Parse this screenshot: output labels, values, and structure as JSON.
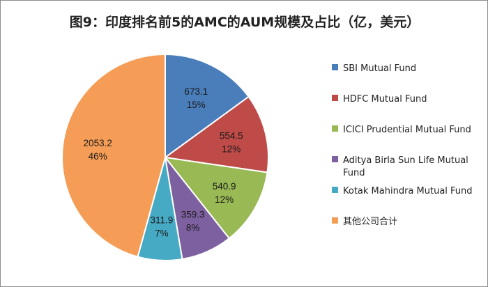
{
  "chart_data": {
    "type": "pie",
    "title": "图9：印度排名前5的AMC的AUM规模及占比（亿，美元）",
    "categories": [
      "SBI Mutual Fund",
      "HDFC Mutual Fund",
      "ICICI Prudential Mutual Fund",
      "Aditya Birla Sun Life Mutual Fund",
      "Kotak Mahindra Mutual Fund",
      "其他公司合计"
    ],
    "legend_lines": [
      [
        "SBI Mutual Fund"
      ],
      [
        "HDFC Mutual Fund"
      ],
      [
        "ICICI Prudential Mutual Fund"
      ],
      [
        "Aditya Birla Sun Life Mutual",
        "Fund"
      ],
      [
        "Kotak Mahindra Mutual Fund"
      ],
      [
        "其他公司合计"
      ]
    ],
    "values": [
      673.1,
      554.5,
      540.9,
      359.3,
      311.9,
      2053.2
    ],
    "value_labels": [
      "673.1",
      "554.5",
      "540.9",
      "359.3",
      "311.9",
      "2053.2"
    ],
    "percent_labels": [
      "15%",
      "12%",
      "12%",
      "8%",
      "7%",
      "46%"
    ],
    "colors": [
      "#4a7ebb",
      "#be4b48",
      "#98b954",
      "#7d60a0",
      "#46aac5",
      "#f59d56"
    ],
    "legend_position": "right",
    "start_angle": "12 o'clock, clockwise"
  }
}
